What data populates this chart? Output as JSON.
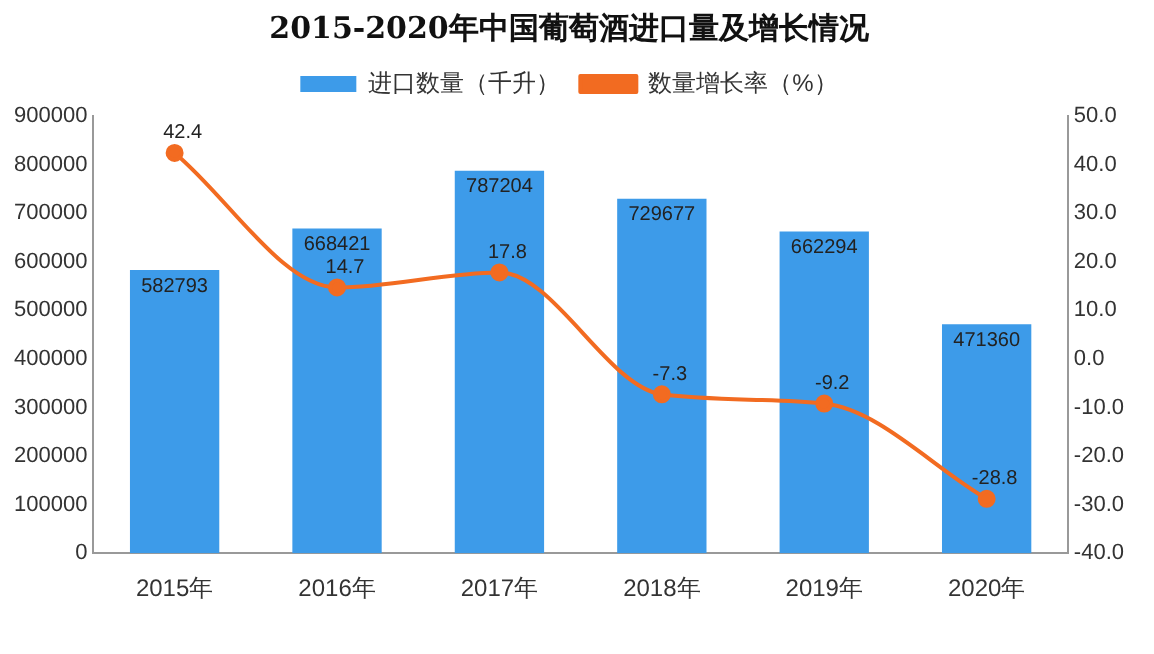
{
  "chart_data": {
    "type": "bar",
    "title": "2015-2020年中国葡萄酒进口量及增长情况",
    "categories": [
      "2015年",
      "2016年",
      "2017年",
      "2018年",
      "2019年",
      "2020年"
    ],
    "series": [
      {
        "name": "进口数量（千升）",
        "color": "#3d9be9",
        "values": [
          582793,
          668421,
          787204,
          729677,
          662294,
          471360
        ]
      },
      {
        "name": "数量增长率（%）",
        "type": "line",
        "axis": "y2",
        "color": "#f26b21",
        "values": [
          42.4,
          14.7,
          17.8,
          -7.3,
          -9.2,
          -28.8
        ]
      }
    ],
    "ylim": [
      0,
      900000
    ],
    "yticks": [
      0,
      100000,
      200000,
      300000,
      400000,
      500000,
      600000,
      700000,
      800000,
      900000
    ],
    "y2lim": [
      -40,
      50
    ],
    "y2ticks": [
      {
        "value": -40,
        "label": "-40.0"
      },
      {
        "value": -30,
        "label": "-30.0"
      },
      {
        "value": -20,
        "label": "-20.0"
      },
      {
        "value": -10,
        "label": "-10.0"
      },
      {
        "value": 0,
        "label": "0.0"
      },
      {
        "value": 10,
        "label": "10.0"
      },
      {
        "value": 20,
        "label": "20.0"
      },
      {
        "value": 30,
        "label": "30.0"
      },
      {
        "value": 40,
        "label": "40.0"
      },
      {
        "value": 50,
        "label": "50.0"
      }
    ],
    "legend": "top",
    "marker": "circle",
    "data_labels": true,
    "grid": false
  }
}
